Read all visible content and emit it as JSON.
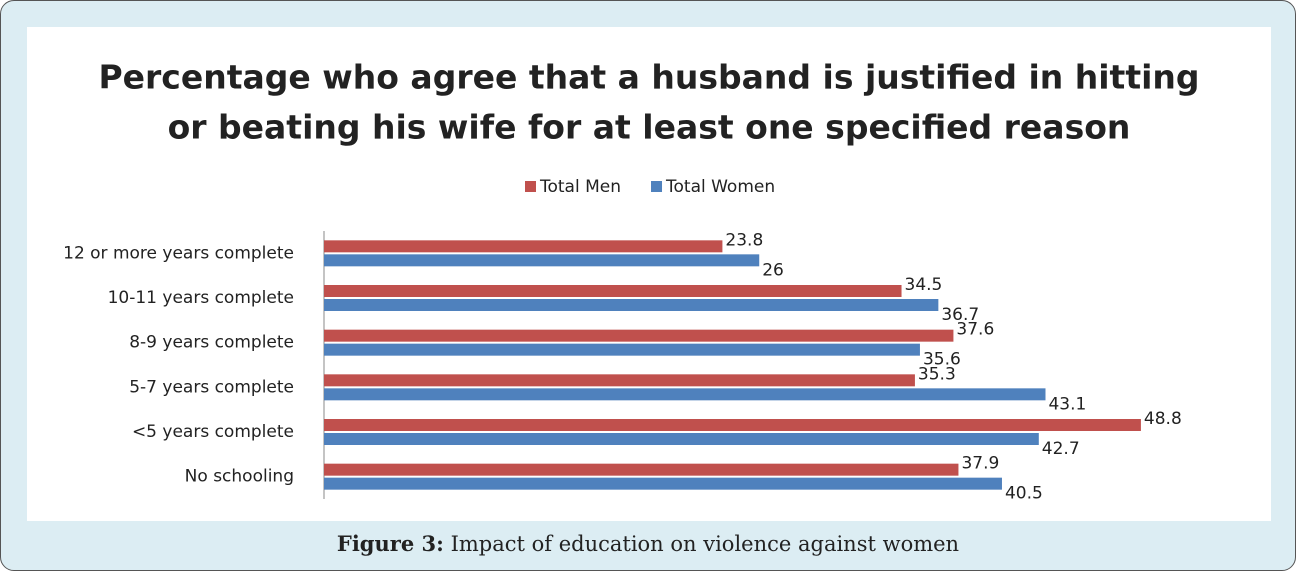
{
  "chart_data": {
    "type": "hbar",
    "title": [
      "Percentage  who agree that a husband is justified in hitting",
      "or beating his wife for at least one specified reason"
    ],
    "categories": [
      "12 or more years complete",
      "10-11 years complete",
      "8-9 years complete",
      "5-7 years complete",
      "<5 years complete",
      "No schooling"
    ],
    "series": [
      {
        "name": "Total Men",
        "color": "#c0504d",
        "values": [
          23.8,
          34.5,
          37.6,
          35.3,
          48.8,
          37.9
        ]
      },
      {
        "name": "Total Women",
        "color": "#4f81bd",
        "values": [
          26,
          36.7,
          35.6,
          43.1,
          42.7,
          40.5
        ]
      }
    ],
    "xlim": [
      0,
      50
    ],
    "legend": "top"
  },
  "caption": {
    "label": "Figure 3:",
    "text": "Impact of education on violence against women"
  }
}
